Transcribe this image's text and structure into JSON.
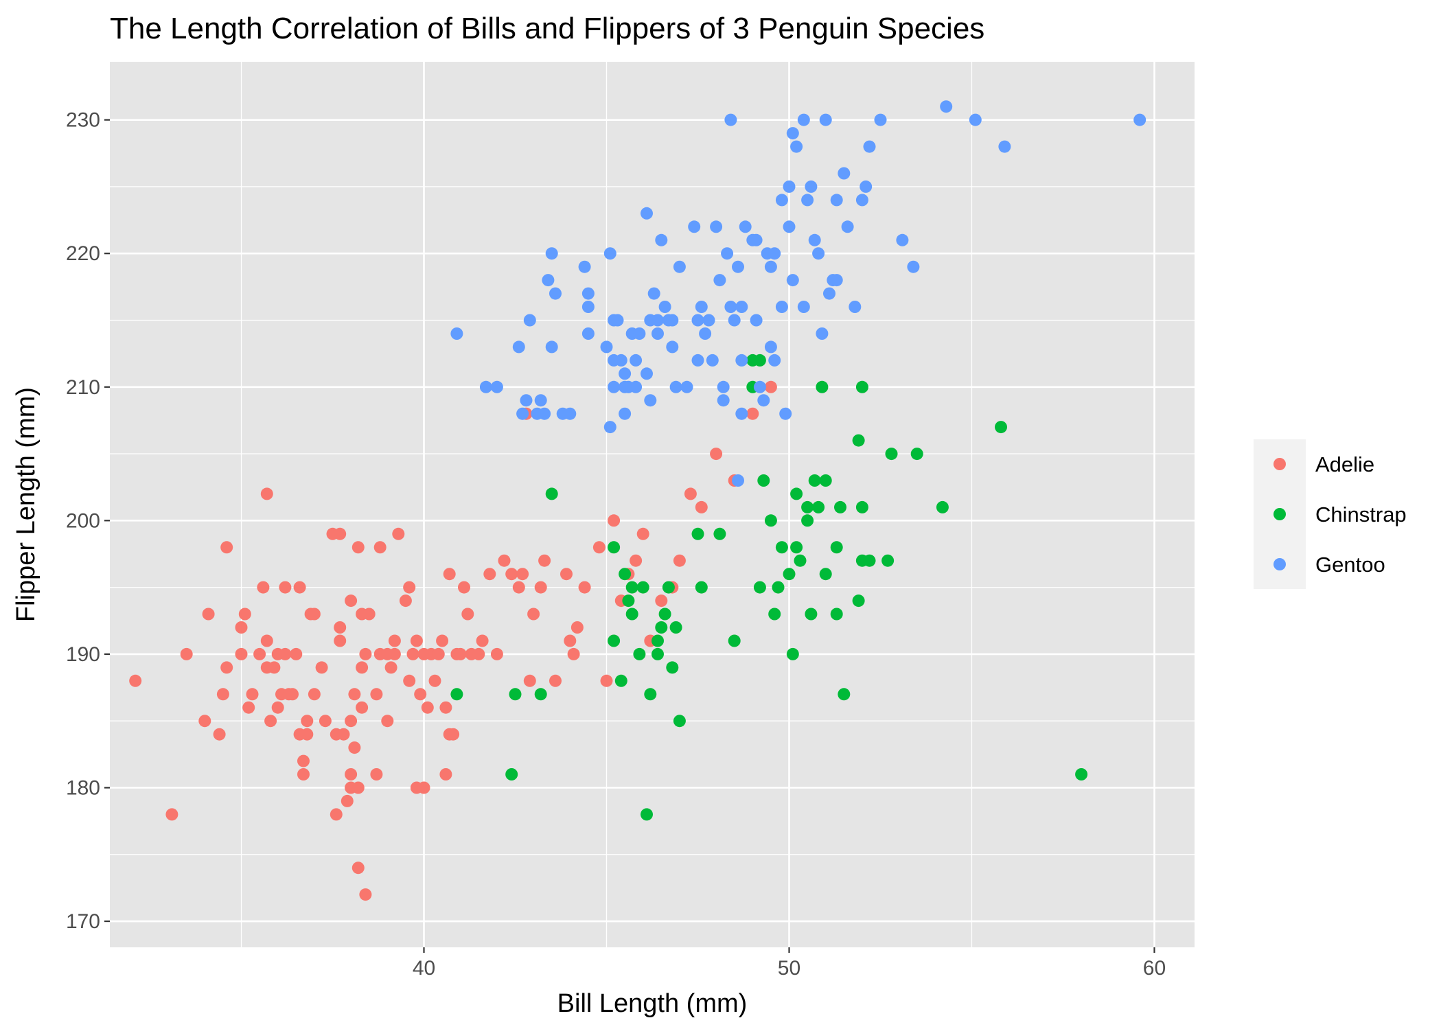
{
  "chart_data": {
    "type": "scatter",
    "title": "The Length Correlation of Bills and Flippers of 3 Penguin Species",
    "xlabel": "Bill Length (mm)",
    "ylabel": "Flipper Length (mm)",
    "xlim": [
      31.4,
      61.1
    ],
    "ylim": [
      168.05,
      234.35
    ],
    "x_ticks": [
      40,
      50,
      60
    ],
    "x_tick_labels": [
      "40",
      "50",
      "60"
    ],
    "x_minor_ticks": [
      35,
      45,
      55
    ],
    "y_ticks": [
      170,
      180,
      190,
      200,
      210,
      220,
      230
    ],
    "y_tick_labels": [
      "170",
      "180",
      "190",
      "200",
      "210",
      "220",
      "230"
    ],
    "y_minor_ticks": [
      175,
      185,
      195,
      205,
      215,
      225
    ],
    "grid": true,
    "legend": {
      "position": "right"
    },
    "colors": {
      "panel": "#e5e5e5",
      "grid": "#ffffff",
      "Adelie": "#f8766d",
      "Chinstrap": "#00ba38",
      "Gentoo": "#619cff"
    },
    "series": [
      {
        "name": "Adelie",
        "color": "#f8766d",
        "points": [
          [
            32.1,
            188
          ],
          [
            33.1,
            178
          ],
          [
            33.5,
            190
          ],
          [
            34.0,
            185
          ],
          [
            34.1,
            193
          ],
          [
            34.4,
            184
          ],
          [
            34.5,
            187
          ],
          [
            34.6,
            198
          ],
          [
            34.6,
            189
          ],
          [
            35.0,
            190
          ],
          [
            35.1,
            193
          ],
          [
            35.0,
            192
          ],
          [
            35.2,
            186
          ],
          [
            35.3,
            187
          ],
          [
            35.5,
            190
          ],
          [
            35.6,
            195
          ],
          [
            35.7,
            191
          ],
          [
            35.7,
            189
          ],
          [
            35.8,
            185
          ],
          [
            35.7,
            202
          ],
          [
            35.9,
            189
          ],
          [
            36.0,
            190
          ],
          [
            36.0,
            186
          ],
          [
            36.1,
            187
          ],
          [
            36.2,
            195
          ],
          [
            36.2,
            190
          ],
          [
            36.3,
            187
          ],
          [
            36.4,
            187
          ],
          [
            36.5,
            190
          ],
          [
            36.6,
            184
          ],
          [
            36.6,
            195
          ],
          [
            36.7,
            181
          ],
          [
            36.7,
            182
          ],
          [
            36.8,
            184
          ],
          [
            36.8,
            185
          ],
          [
            36.9,
            193
          ],
          [
            37.0,
            187
          ],
          [
            37.0,
            193
          ],
          [
            37.2,
            189
          ],
          [
            37.3,
            185
          ],
          [
            37.5,
            199
          ],
          [
            37.6,
            184
          ],
          [
            37.6,
            178
          ],
          [
            37.7,
            191
          ],
          [
            37.7,
            192
          ],
          [
            37.7,
            199
          ],
          [
            37.8,
            184
          ],
          [
            37.9,
            179
          ],
          [
            38.0,
            180
          ],
          [
            38.0,
            181
          ],
          [
            38.0,
            185
          ],
          [
            38.0,
            194
          ],
          [
            38.1,
            187
          ],
          [
            38.1,
            183
          ],
          [
            38.2,
            180
          ],
          [
            38.2,
            198
          ],
          [
            38.2,
            174
          ],
          [
            38.3,
            193
          ],
          [
            38.3,
            186
          ],
          [
            38.3,
            189
          ],
          [
            38.4,
            190
          ],
          [
            38.4,
            172
          ],
          [
            38.5,
            193
          ],
          [
            38.7,
            181
          ],
          [
            38.7,
            187
          ],
          [
            38.8,
            190
          ],
          [
            38.8,
            198
          ],
          [
            39.0,
            185
          ],
          [
            39.0,
            190
          ],
          [
            39.1,
            189
          ],
          [
            39.2,
            190
          ],
          [
            39.2,
            191
          ],
          [
            39.3,
            199
          ],
          [
            39.5,
            194
          ],
          [
            39.6,
            188
          ],
          [
            39.6,
            195
          ],
          [
            39.7,
            190
          ],
          [
            39.8,
            191
          ],
          [
            39.8,
            180
          ],
          [
            39.9,
            187
          ],
          [
            40.0,
            180
          ],
          [
            40.0,
            190
          ],
          [
            40.1,
            186
          ],
          [
            40.2,
            190
          ],
          [
            40.3,
            188
          ],
          [
            40.4,
            190
          ],
          [
            40.5,
            191
          ],
          [
            40.6,
            181
          ],
          [
            40.6,
            186
          ],
          [
            40.7,
            184
          ],
          [
            40.7,
            196
          ],
          [
            40.8,
            184
          ],
          [
            40.9,
            190
          ],
          [
            41.0,
            190
          ],
          [
            41.1,
            195
          ],
          [
            41.2,
            193
          ],
          [
            41.3,
            190
          ],
          [
            41.5,
            190
          ],
          [
            41.6,
            191
          ],
          [
            41.8,
            196
          ],
          [
            42.0,
            190
          ],
          [
            42.2,
            197
          ],
          [
            42.4,
            196
          ],
          [
            42.6,
            195
          ],
          [
            42.7,
            196
          ],
          [
            42.8,
            208
          ],
          [
            42.9,
            188
          ],
          [
            43.0,
            193
          ],
          [
            43.2,
            195
          ],
          [
            43.3,
            197
          ],
          [
            43.6,
            188
          ],
          [
            43.9,
            196
          ],
          [
            44.0,
            191
          ],
          [
            44.1,
            190
          ],
          [
            44.2,
            192
          ],
          [
            44.4,
            195
          ],
          [
            44.8,
            198
          ],
          [
            45.0,
            188
          ],
          [
            45.2,
            200
          ],
          [
            45.4,
            194
          ],
          [
            45.6,
            196
          ],
          [
            45.8,
            197
          ],
          [
            46.0,
            199
          ],
          [
            46.2,
            191
          ],
          [
            46.5,
            194
          ],
          [
            46.8,
            195
          ],
          [
            47.0,
            197
          ],
          [
            47.3,
            202
          ],
          [
            47.6,
            201
          ],
          [
            48.0,
            205
          ],
          [
            48.5,
            203
          ],
          [
            49.0,
            208
          ],
          [
            49.5,
            210
          ]
        ]
      },
      {
        "name": "Chinstrap",
        "color": "#00ba38",
        "points": [
          [
            40.9,
            187
          ],
          [
            42.4,
            181
          ],
          [
            42.5,
            187
          ],
          [
            43.2,
            187
          ],
          [
            43.5,
            202
          ],
          [
            45.2,
            191
          ],
          [
            45.2,
            198
          ],
          [
            45.4,
            188
          ],
          [
            45.5,
            196
          ],
          [
            45.6,
            194
          ],
          [
            45.7,
            195
          ],
          [
            45.7,
            193
          ],
          [
            45.9,
            190
          ],
          [
            46.0,
            195
          ],
          [
            46.1,
            178
          ],
          [
            46.2,
            187
          ],
          [
            46.4,
            191
          ],
          [
            46.4,
            190
          ],
          [
            46.5,
            192
          ],
          [
            46.6,
            193
          ],
          [
            46.7,
            195
          ],
          [
            46.8,
            189
          ],
          [
            46.9,
            192
          ],
          [
            47.0,
            185
          ],
          [
            47.5,
            199
          ],
          [
            47.6,
            195
          ],
          [
            48.1,
            199
          ],
          [
            48.5,
            191
          ],
          [
            49.0,
            212
          ],
          [
            49.0,
            210
          ],
          [
            49.2,
            195
          ],
          [
            49.3,
            203
          ],
          [
            49.5,
            200
          ],
          [
            49.6,
            193
          ],
          [
            49.7,
            195
          ],
          [
            49.8,
            198
          ],
          [
            50.0,
            196
          ],
          [
            50.1,
            190
          ],
          [
            50.2,
            202
          ],
          [
            50.2,
            198
          ],
          [
            50.3,
            197
          ],
          [
            50.5,
            201
          ],
          [
            50.5,
            200
          ],
          [
            50.6,
            193
          ],
          [
            50.7,
            203
          ],
          [
            50.8,
            201
          ],
          [
            50.9,
            210
          ],
          [
            51.0,
            203
          ],
          [
            51.0,
            196
          ],
          [
            51.3,
            198
          ],
          [
            51.3,
            193
          ],
          [
            51.4,
            201
          ],
          [
            51.5,
            187
          ],
          [
            51.9,
            194
          ],
          [
            52.0,
            197
          ],
          [
            52.0,
            201
          ],
          [
            52.0,
            210
          ],
          [
            52.2,
            197
          ],
          [
            52.7,
            197
          ],
          [
            52.8,
            205
          ],
          [
            53.5,
            205
          ],
          [
            54.2,
            201
          ],
          [
            55.8,
            207
          ],
          [
            58.0,
            181
          ],
          [
            51.9,
            206
          ],
          [
            49.2,
            212
          ]
        ]
      },
      {
        "name": "Gentoo",
        "color": "#619cff",
        "points": [
          [
            40.9,
            214
          ],
          [
            41.7,
            210
          ],
          [
            42.0,
            210
          ],
          [
            42.6,
            213
          ],
          [
            42.7,
            208
          ],
          [
            42.8,
            209
          ],
          [
            42.9,
            215
          ],
          [
            43.1,
            208
          ],
          [
            43.2,
            209
          ],
          [
            43.3,
            208
          ],
          [
            43.4,
            218
          ],
          [
            43.5,
            213
          ],
          [
            43.5,
            220
          ],
          [
            43.6,
            217
          ],
          [
            43.8,
            208
          ],
          [
            44.0,
            208
          ],
          [
            44.4,
            219
          ],
          [
            44.5,
            216
          ],
          [
            44.5,
            217
          ],
          [
            44.5,
            214
          ],
          [
            45.0,
            213
          ],
          [
            45.1,
            207
          ],
          [
            45.1,
            220
          ],
          [
            45.2,
            210
          ],
          [
            45.2,
            212
          ],
          [
            45.2,
            215
          ],
          [
            45.3,
            215
          ],
          [
            45.4,
            212
          ],
          [
            45.5,
            208
          ],
          [
            45.5,
            210
          ],
          [
            45.5,
            211
          ],
          [
            45.6,
            210
          ],
          [
            45.7,
            214
          ],
          [
            45.8,
            210
          ],
          [
            45.8,
            212
          ],
          [
            45.9,
            214
          ],
          [
            46.1,
            211
          ],
          [
            46.2,
            215
          ],
          [
            46.2,
            209
          ],
          [
            46.3,
            217
          ],
          [
            46.4,
            215
          ],
          [
            46.4,
            214
          ],
          [
            46.5,
            221
          ],
          [
            46.6,
            216
          ],
          [
            46.7,
            215
          ],
          [
            46.8,
            213
          ],
          [
            46.8,
            215
          ],
          [
            46.9,
            210
          ],
          [
            47.0,
            219
          ],
          [
            47.2,
            210
          ],
          [
            47.4,
            222
          ],
          [
            47.5,
            215
          ],
          [
            47.6,
            216
          ],
          [
            47.7,
            214
          ],
          [
            47.8,
            215
          ],
          [
            47.9,
            212
          ],
          [
            48.0,
            222
          ],
          [
            48.1,
            218
          ],
          [
            48.2,
            210
          ],
          [
            48.2,
            209
          ],
          [
            48.4,
            216
          ],
          [
            48.5,
            215
          ],
          [
            48.7,
            216
          ],
          [
            48.7,
            212
          ],
          [
            49.0,
            221
          ],
          [
            49.1,
            215
          ],
          [
            49.2,
            210
          ],
          [
            49.3,
            209
          ],
          [
            49.4,
            220
          ],
          [
            49.5,
            219
          ],
          [
            49.5,
            213
          ],
          [
            49.6,
            220
          ],
          [
            49.8,
            216
          ],
          [
            49.9,
            208
          ],
          [
            50.0,
            222
          ],
          [
            50.1,
            229
          ],
          [
            50.2,
            228
          ],
          [
            50.4,
            230
          ],
          [
            50.5,
            224
          ],
          [
            50.7,
            221
          ],
          [
            50.8,
            220
          ],
          [
            50.9,
            214
          ],
          [
            51.0,
            230
          ],
          [
            51.1,
            217
          ],
          [
            51.3,
            224
          ],
          [
            51.5,
            226
          ],
          [
            51.6,
            222
          ],
          [
            51.8,
            216
          ],
          [
            52.0,
            224
          ],
          [
            52.1,
            225
          ],
          [
            52.2,
            228
          ],
          [
            52.5,
            230
          ],
          [
            53.1,
            221
          ],
          [
            53.4,
            219
          ],
          [
            54.3,
            231
          ],
          [
            55.1,
            230
          ],
          [
            55.9,
            228
          ],
          [
            59.6,
            230
          ],
          [
            48.6,
            203
          ],
          [
            48.3,
            220
          ],
          [
            48.6,
            219
          ],
          [
            48.8,
            222
          ],
          [
            49.1,
            221
          ],
          [
            49.6,
            212
          ],
          [
            50.0,
            225
          ],
          [
            50.1,
            218
          ],
          [
            50.4,
            216
          ],
          [
            50.6,
            225
          ],
          [
            51.2,
            218
          ],
          [
            48.4,
            230
          ],
          [
            46.1,
            223
          ],
          [
            47.5,
            212
          ],
          [
            48.7,
            208
          ],
          [
            49.8,
            224
          ],
          [
            51.3,
            218
          ]
        ]
      }
    ]
  }
}
